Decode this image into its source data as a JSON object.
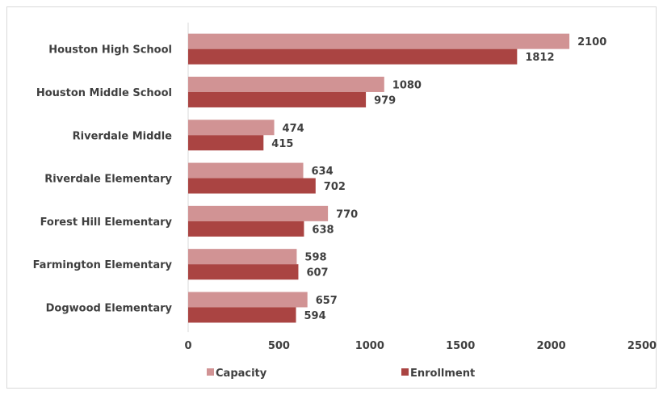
{
  "chart_data": {
    "type": "bar",
    "orientation": "horizontal",
    "categories": [
      "Houston High School",
      "Houston Middle School",
      "Riverdale Middle",
      "Riverdale Elementary",
      "Forest Hill Elementary",
      "Farmington Elementary",
      "Dogwood Elementary"
    ],
    "series": [
      {
        "name": "Capacity",
        "color": "#d19394",
        "values": [
          2100,
          1080,
          474,
          634,
          770,
          598,
          657
        ]
      },
      {
        "name": "Enrollment",
        "color": "#aa4442",
        "values": [
          1812,
          979,
          415,
          702,
          638,
          607,
          594
        ]
      }
    ],
    "xlim": [
      0,
      2500
    ],
    "xticks": [
      0,
      500,
      1000,
      1500,
      2000,
      2500
    ],
    "title": "",
    "xlabel": "",
    "ylabel": "",
    "grid": false,
    "legend": "bottom",
    "data_labels": true
  },
  "colors": {
    "text": "#3f3f3f",
    "axis": "#d9d9d9"
  }
}
